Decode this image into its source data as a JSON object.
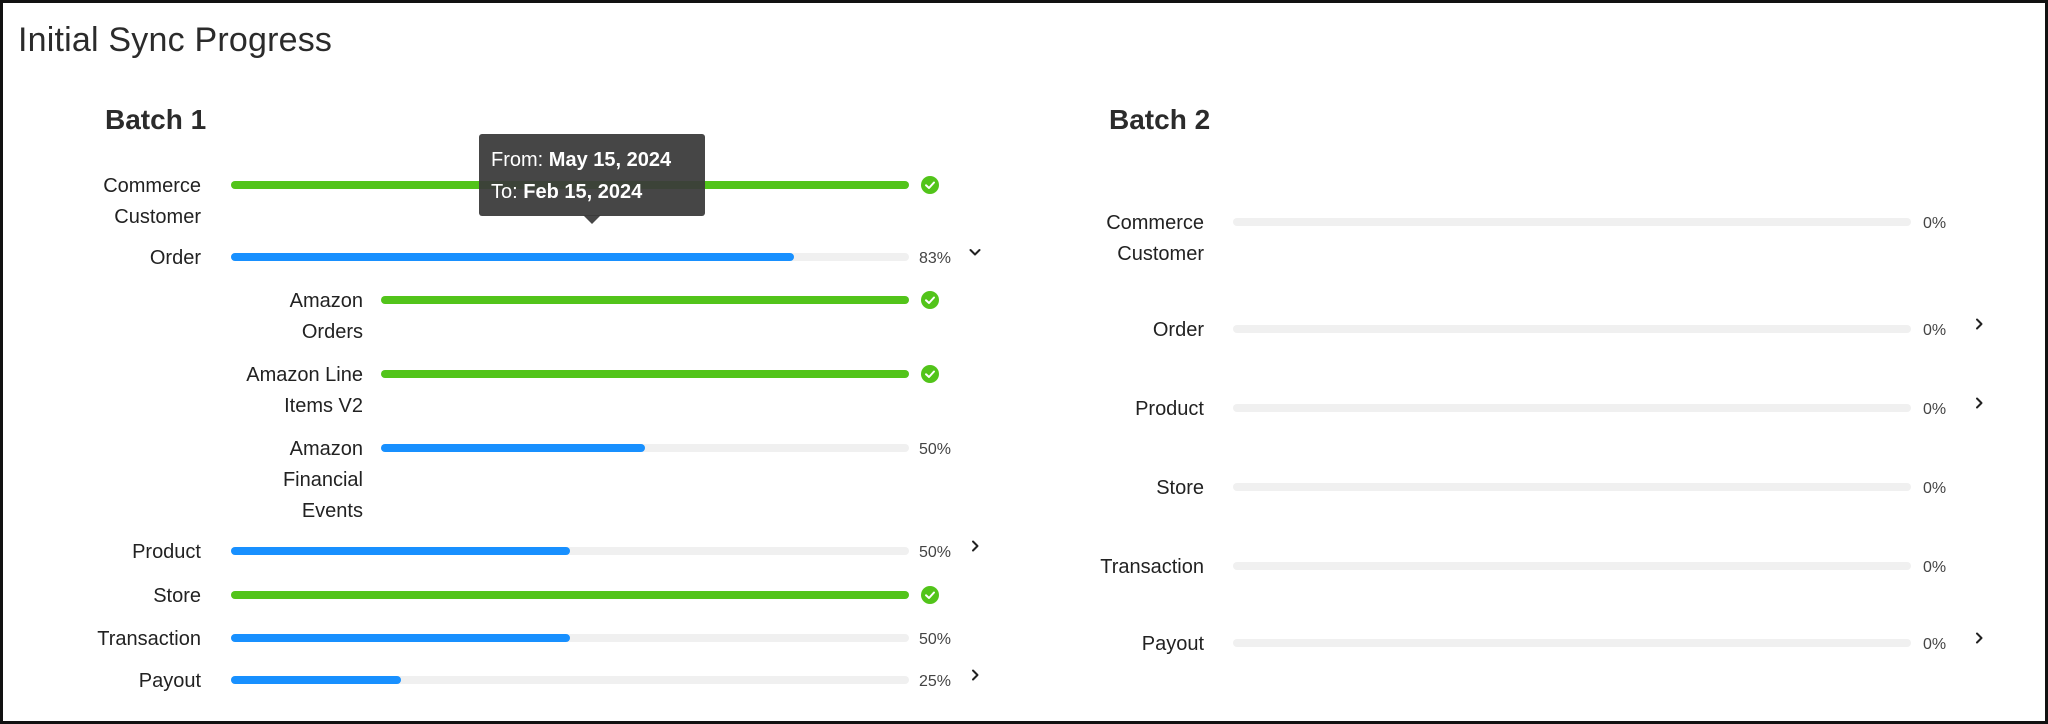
{
  "page": {
    "title": "Initial Sync Progress"
  },
  "batch1": {
    "title": "Batch 1",
    "rows": [
      {
        "label_lines": [
          "Commerce",
          "Customer"
        ],
        "progress": 100,
        "color": "#52c41a",
        "status": "check"
      },
      {
        "label_lines": [
          "Order"
        ],
        "progress": 83,
        "percent_text": "83%",
        "color": "#1890ff",
        "chevron": "chevron-down"
      },
      {
        "label_lines": [
          "Amazon",
          "Orders"
        ],
        "progress": 100,
        "color": "#52c41a",
        "status": "check"
      },
      {
        "label_lines": [
          "Amazon Line",
          "Items V2"
        ],
        "progress": 100,
        "color": "#52c41a",
        "status": "check"
      },
      {
        "label_lines": [
          "Amazon",
          "Financial",
          "Events"
        ],
        "progress": 50,
        "percent_text": "50%",
        "color": "#1890ff"
      },
      {
        "label_lines": [
          "Product"
        ],
        "progress": 50,
        "percent_text": "50%",
        "color": "#1890ff",
        "chevron": "chevron-right"
      },
      {
        "label_lines": [
          "Store"
        ],
        "progress": 100,
        "color": "#52c41a",
        "status": "check"
      },
      {
        "label_lines": [
          "Transaction"
        ],
        "progress": 50,
        "percent_text": "50%",
        "color": "#1890ff"
      },
      {
        "label_lines": [
          "Payout"
        ],
        "progress": 25,
        "percent_text": "25%",
        "color": "#1890ff",
        "chevron": "chevron-right"
      }
    ]
  },
  "batch2": {
    "title": "Batch 2",
    "rows": [
      {
        "label_lines": [
          "Commerce",
          "Customer"
        ],
        "progress": 0,
        "percent_text": "0%"
      },
      {
        "label_lines": [
          "Order"
        ],
        "progress": 0,
        "percent_text": "0%",
        "chevron": "chevron-right"
      },
      {
        "label_lines": [
          "Product"
        ],
        "progress": 0,
        "percent_text": "0%",
        "chevron": "chevron-right"
      },
      {
        "label_lines": [
          "Store"
        ],
        "progress": 0,
        "percent_text": "0%"
      },
      {
        "label_lines": [
          "Transaction"
        ],
        "progress": 0,
        "percent_text": "0%"
      },
      {
        "label_lines": [
          "Payout"
        ],
        "progress": 0,
        "percent_text": "0%",
        "chevron": "chevron-right"
      }
    ]
  },
  "tooltip": {
    "from_label": "From:",
    "from_value": "May 15, 2024",
    "to_label": "To:",
    "to_value": "Feb 15, 2024"
  },
  "colors": {
    "complete": "#52c41a",
    "in_progress": "#1890ff",
    "track": "#f0f0f0"
  }
}
